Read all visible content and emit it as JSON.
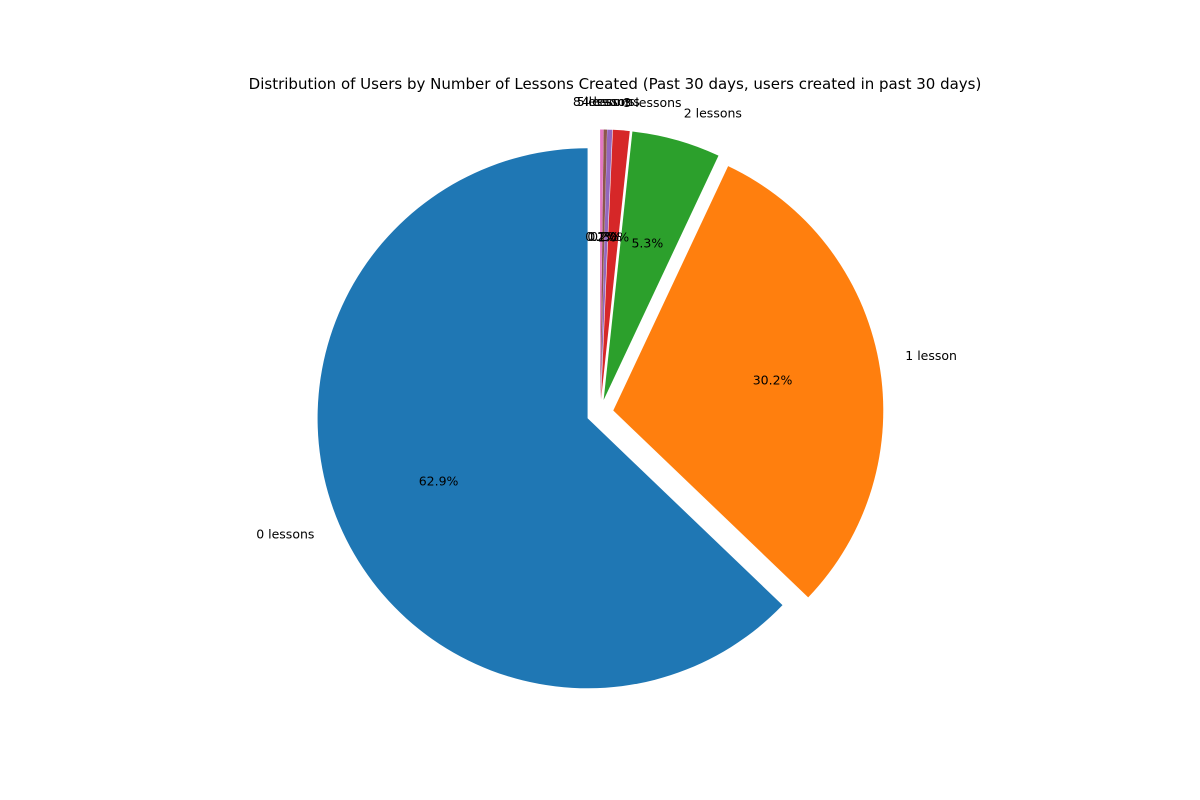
{
  "chart_data": {
    "type": "pie",
    "title": "Distribution of Users by Number of Lessons Created (Past 30 days, users created in past 30 days)",
    "start_angle_deg": 90,
    "direction": "counterclockwise",
    "labels": [
      "0 lessons",
      "1 lesson",
      "2 lessons",
      "3 lessons",
      "4 lessons",
      "5 lessons",
      "8 lessons"
    ],
    "values": [
      62.9,
      30.2,
      5.3,
      1.0,
      0.3,
      0.2,
      0.2
    ],
    "pct_labels": [
      "62.9%",
      "30.2%",
      "5.3%",
      "1.0%",
      "0.3%",
      "0.2%",
      "0.2%"
    ],
    "explode": [
      0.05,
      0.05,
      0.05,
      0.05,
      0.05,
      0.05,
      0.05
    ],
    "colors": [
      "#1f77b4",
      "#ff7f0e",
      "#2ca02c",
      "#d62728",
      "#9467bd",
      "#8c564b",
      "#e377c2"
    ],
    "legend": "none"
  }
}
